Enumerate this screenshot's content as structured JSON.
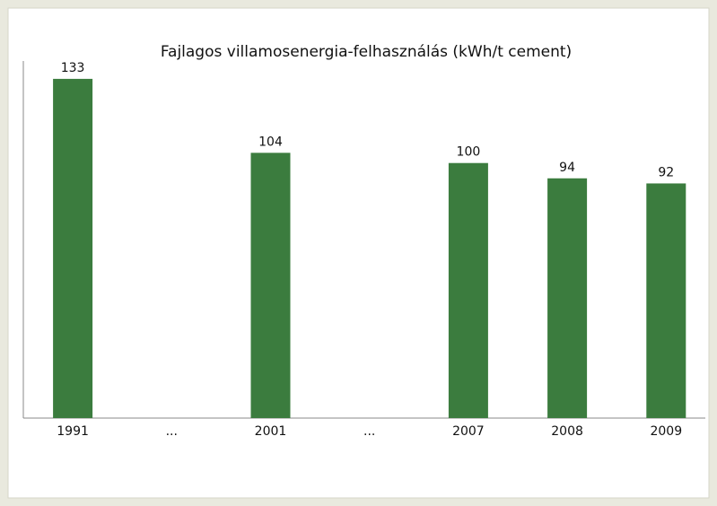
{
  "chart_data": {
    "type": "bar",
    "title": "Fajlagos villamosenergia-felhasználás (kWh/t cement)",
    "categories": [
      "1991",
      "...",
      "2001",
      "...",
      "2007",
      "2008",
      "2009"
    ],
    "values": [
      133,
      null,
      104,
      null,
      100,
      94,
      92
    ],
    "color": "#3b7c3e",
    "ylim": [
      0,
      140
    ]
  }
}
